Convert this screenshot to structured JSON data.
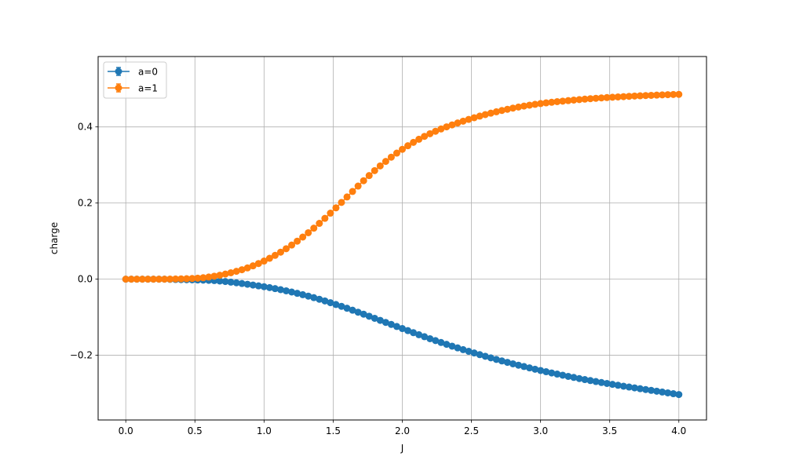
{
  "chart_data": {
    "type": "line",
    "title": "",
    "xlabel": "J",
    "ylabel": "charge",
    "xlim": [
      -0.2,
      4.2
    ],
    "ylim": [
      -0.37,
      0.585
    ],
    "grid": true,
    "legend_position": "top-left",
    "x_ticks": [
      0.0,
      0.5,
      1.0,
      1.5,
      2.0,
      2.5,
      3.0,
      3.5,
      4.0
    ],
    "x_tick_labels": [
      "0.0",
      "0.5",
      "1.0",
      "1.5",
      "2.0",
      "2.5",
      "3.0",
      "3.5",
      "4.0"
    ],
    "y_ticks": [
      -0.2,
      0.0,
      0.2,
      0.4
    ],
    "y_tick_labels": [
      "−0.2",
      "0.0",
      "0.2",
      "0.4"
    ],
    "x_range": {
      "start": 0.0,
      "stop": 4.0,
      "points": 101
    },
    "series": [
      {
        "name": "a=0",
        "color": "#1f77b4",
        "marker": "circle",
        "errorbars": true,
        "values": [
          0.0,
          0.0,
          0.0,
          0.0,
          0.0,
          0.0,
          0.0,
          0.0,
          -0.0005,
          -0.0008,
          -0.0012,
          -0.0015,
          -0.0018,
          -0.0022,
          -0.0026,
          -0.003,
          -0.0037,
          -0.0048,
          -0.0062,
          -0.0078,
          -0.0095,
          -0.0114,
          -0.0134,
          -0.0154,
          -0.0176,
          -0.0198,
          -0.0222,
          -0.0248,
          -0.0276,
          -0.0306,
          -0.0338,
          -0.0372,
          -0.0408,
          -0.0446,
          -0.0486,
          -0.0528,
          -0.0572,
          -0.0618,
          -0.0666,
          -0.0714,
          -0.0764,
          -0.0816,
          -0.0868,
          -0.092,
          -0.0974,
          -0.1028,
          -0.1082,
          -0.1136,
          -0.119,
          -0.1244,
          -0.1298,
          -0.1352,
          -0.1406,
          -0.146,
          -0.1512,
          -0.1564,
          -0.1614,
          -0.1664,
          -0.1712,
          -0.176,
          -0.1806,
          -0.1852,
          -0.1896,
          -0.194,
          -0.1984,
          -0.2026,
          -0.2068,
          -0.2108,
          -0.2148,
          -0.2186,
          -0.2224,
          -0.226,
          -0.2296,
          -0.2332,
          -0.2366,
          -0.24,
          -0.2432,
          -0.2464,
          -0.2494,
          -0.2524,
          -0.2554,
          -0.2582,
          -0.2612,
          -0.2638,
          -0.2664,
          -0.269,
          -0.2716,
          -0.274,
          -0.2764,
          -0.2788,
          -0.2812,
          -0.2834,
          -0.2856,
          -0.2878,
          -0.29,
          -0.2922,
          -0.2944,
          -0.2966,
          -0.2988,
          -0.301,
          -0.3032
        ]
      },
      {
        "name": "a=1",
        "color": "#ff7f0e",
        "marker": "circle",
        "errorbars": true,
        "values": [
          0.0,
          0.0,
          0.0,
          0.0,
          0.0,
          0.0,
          0.0,
          0.0,
          0.0002,
          0.0005,
          0.0008,
          0.0012,
          0.0018,
          0.0026,
          0.0038,
          0.0056,
          0.0078,
          0.0104,
          0.0134,
          0.0168,
          0.0206,
          0.0248,
          0.0296,
          0.035,
          0.041,
          0.0476,
          0.0548,
          0.0626,
          0.071,
          0.08,
          0.0896,
          0.0998,
          0.1106,
          0.122,
          0.134,
          0.1466,
          0.1598,
          0.1734,
          0.1874,
          0.2016,
          0.216,
          0.2304,
          0.2446,
          0.2586,
          0.2722,
          0.2852,
          0.2976,
          0.3094,
          0.3206,
          0.3312,
          0.3412,
          0.3506,
          0.3594,
          0.3676,
          0.3752,
          0.3822,
          0.3886,
          0.3946,
          0.4002,
          0.4054,
          0.4104,
          0.4152,
          0.4198,
          0.4242,
          0.4284,
          0.4324,
          0.4362,
          0.4398,
          0.4432,
          0.4464,
          0.4494,
          0.4522,
          0.4548,
          0.4572,
          0.4594,
          0.4614,
          0.4632,
          0.4648,
          0.4664,
          0.4678,
          0.4692,
          0.4706,
          0.4718,
          0.473,
          0.4742,
          0.4752,
          0.4762,
          0.4772,
          0.478,
          0.4788,
          0.4796,
          0.4804,
          0.4812,
          0.4818,
          0.4824,
          0.483,
          0.4836,
          0.4842,
          0.4848,
          0.4852,
          0.4856
        ]
      }
    ]
  }
}
